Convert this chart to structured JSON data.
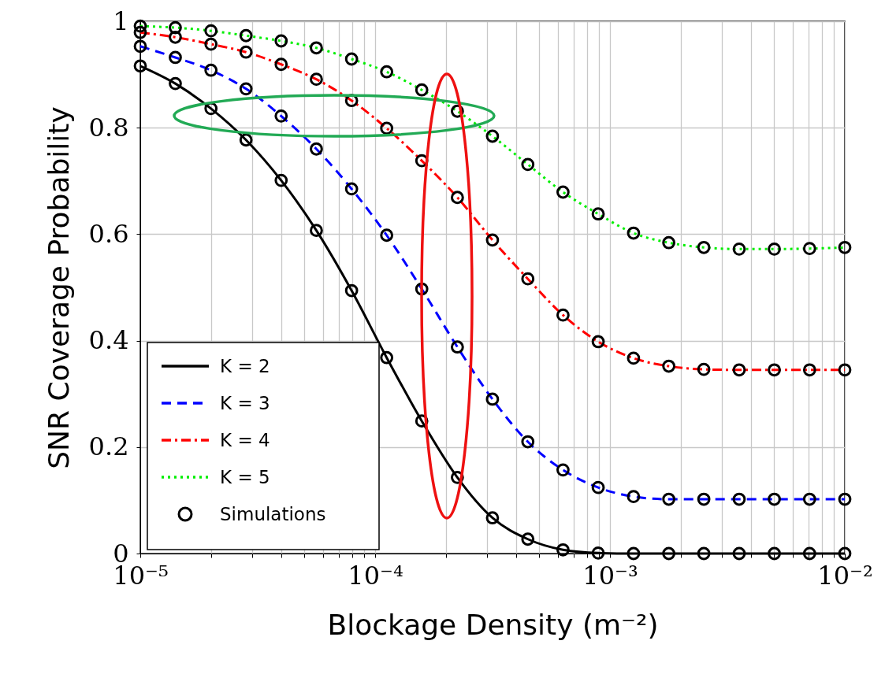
{
  "chart_data": {
    "type": "line",
    "xlabel": "Blockage Density (m⁻²)",
    "ylabel": "SNR Coverage Probability",
    "log": "x",
    "grid": true,
    "legend": "bottom left",
    "xlim": [
      1e-05,
      0.01
    ],
    "ylim": [
      0,
      1
    ],
    "xticks": [
      {
        "value": 1e-05,
        "label": "10⁻⁵"
      },
      {
        "value": 2e-05,
        "label": null
      },
      {
        "value": 3e-05,
        "label": null
      },
      {
        "value": 4e-05,
        "label": null
      },
      {
        "value": 5e-05,
        "label": null
      },
      {
        "value": 6e-05,
        "label": null
      },
      {
        "value": 7e-05,
        "label": null
      },
      {
        "value": 8e-05,
        "label": null
      },
      {
        "value": 9e-05,
        "label": null
      },
      {
        "value": 0.0001,
        "label": "10⁻⁴"
      },
      {
        "value": 0.0002,
        "label": null
      },
      {
        "value": 0.0003,
        "label": null
      },
      {
        "value": 0.0004,
        "label": null
      },
      {
        "value": 0.0005,
        "label": null
      },
      {
        "value": 0.0006,
        "label": null
      },
      {
        "value": 0.0007,
        "label": null
      },
      {
        "value": 0.0008,
        "label": null
      },
      {
        "value": 0.0009,
        "label": null
      },
      {
        "value": 0.001,
        "label": "10⁻³"
      },
      {
        "value": 0.002,
        "label": null
      },
      {
        "value": 0.003,
        "label": null
      },
      {
        "value": 0.004,
        "label": null
      },
      {
        "value": 0.005,
        "label": null
      },
      {
        "value": 0.006,
        "label": null
      },
      {
        "value": 0.007,
        "label": null
      },
      {
        "value": 0.008,
        "label": null
      },
      {
        "value": 0.009,
        "label": null
      },
      {
        "value": 0.01,
        "label": "10⁻²"
      }
    ],
    "yticks": [
      0,
      0.2,
      0.4,
      0.6,
      0.8,
      1
    ],
    "x": [
      1e-05,
      1.41e-05,
      2e-05,
      2.82e-05,
      3.98e-05,
      5.62e-05,
      7.94e-05,
      0.000112,
      0.000158,
      0.000224,
      0.000316,
      0.000447,
      0.000631,
      0.000891,
      0.00126,
      0.00178,
      0.00251,
      0.00355,
      0.00501,
      0.00708,
      0.01
    ],
    "series": [
      {
        "name": "K = 2",
        "color": "#000000",
        "line_style": "solid",
        "marker": "none",
        "values": [
          0.916,
          0.883,
          0.836,
          0.777,
          0.701,
          0.607,
          0.494,
          0.368,
          0.249,
          0.143,
          0.067,
          0.027,
          0.007,
          0.001,
          0,
          0,
          0,
          0,
          0,
          0,
          0
        ]
      },
      {
        "name": "K = 3",
        "color": "#0000ff",
        "line_style": "dashed",
        "marker": "none",
        "values": [
          0.953,
          0.932,
          0.908,
          0.873,
          0.822,
          0.76,
          0.685,
          0.598,
          0.497,
          0.388,
          0.29,
          0.21,
          0.157,
          0.124,
          0.107,
          0.102,
          0.102,
          0.102,
          0.102,
          0.102,
          0.102
        ]
      },
      {
        "name": "K = 4",
        "color": "#ff0000",
        "line_style": "dashdot",
        "marker": "none",
        "values": [
          0.979,
          0.97,
          0.957,
          0.942,
          0.919,
          0.891,
          0.851,
          0.799,
          0.738,
          0.669,
          0.589,
          0.516,
          0.448,
          0.398,
          0.367,
          0.352,
          0.346,
          0.345,
          0.345,
          0.345,
          0.345
        ]
      },
      {
        "name": "K = 5",
        "color": "#00ee00",
        "line_style": "dotted",
        "marker": "none",
        "values": [
          0.991,
          0.988,
          0.982,
          0.973,
          0.963,
          0.95,
          0.929,
          0.905,
          0.871,
          0.831,
          0.784,
          0.731,
          0.679,
          0.638,
          0.602,
          0.584,
          0.575,
          0.572,
          0.572,
          0.573,
          0.575
        ]
      },
      {
        "name": "Simulations",
        "type": "scatter",
        "color": "#000000",
        "marker": "circle",
        "x": [
          1e-05,
          1.41e-05,
          2e-05,
          2.82e-05,
          3.98e-05,
          5.62e-05,
          7.94e-05,
          0.000112,
          0.000158,
          0.000224,
          0.000316,
          0.000447,
          0.000631,
          0.000891,
          0.00126,
          0.00178,
          0.00251,
          0.00355,
          0.00501,
          0.00708,
          0.01,
          1e-05,
          1.41e-05,
          2e-05,
          2.82e-05,
          3.98e-05,
          5.62e-05,
          7.94e-05,
          0.000112,
          0.000158,
          0.000224,
          0.000316,
          0.000447,
          0.000631,
          0.000891,
          0.00126,
          0.00178,
          0.00251,
          0.00355,
          0.00501,
          0.00708,
          0.01,
          1e-05,
          1.41e-05,
          2e-05,
          2.82e-05,
          3.98e-05,
          5.62e-05,
          7.94e-05,
          0.000112,
          0.000158,
          0.000224,
          0.000316,
          0.000447,
          0.000631,
          0.000891,
          0.00126,
          0.00178,
          0.00251,
          0.00355,
          0.00501,
          0.00708,
          0.01,
          1e-05,
          1.41e-05,
          2e-05,
          2.82e-05,
          3.98e-05,
          5.62e-05,
          7.94e-05,
          0.000112,
          0.000158,
          0.000224,
          0.000316,
          0.000447,
          0.000631,
          0.000891,
          0.00126,
          0.00178,
          0.00251,
          0.00355,
          0.00501,
          0.00708,
          0.01
        ],
        "values": [
          0.916,
          0.883,
          0.836,
          0.777,
          0.701,
          0.607,
          0.494,
          0.368,
          0.249,
          0.143,
          0.067,
          0.027,
          0.007,
          0.001,
          0,
          0,
          0,
          0,
          0,
          0,
          0,
          0.953,
          0.932,
          0.908,
          0.873,
          0.822,
          0.76,
          0.685,
          0.598,
          0.497,
          0.388,
          0.29,
          0.21,
          0.157,
          0.124,
          0.107,
          0.102,
          0.102,
          0.102,
          0.102,
          0.102,
          0.102,
          0.979,
          0.97,
          0.957,
          0.942,
          0.919,
          0.891,
          0.851,
          0.799,
          0.738,
          0.669,
          0.589,
          0.516,
          0.448,
          0.398,
          0.367,
          0.352,
          0.346,
          0.345,
          0.345,
          0.345,
          0.345,
          0.991,
          0.988,
          0.982,
          0.973,
          0.963,
          0.95,
          0.929,
          0.905,
          0.871,
          0.831,
          0.784,
          0.731,
          0.679,
          0.638,
          0.602,
          0.584,
          0.575,
          0.572,
          0.572,
          0.573,
          0.575
        ]
      }
    ]
  }
}
